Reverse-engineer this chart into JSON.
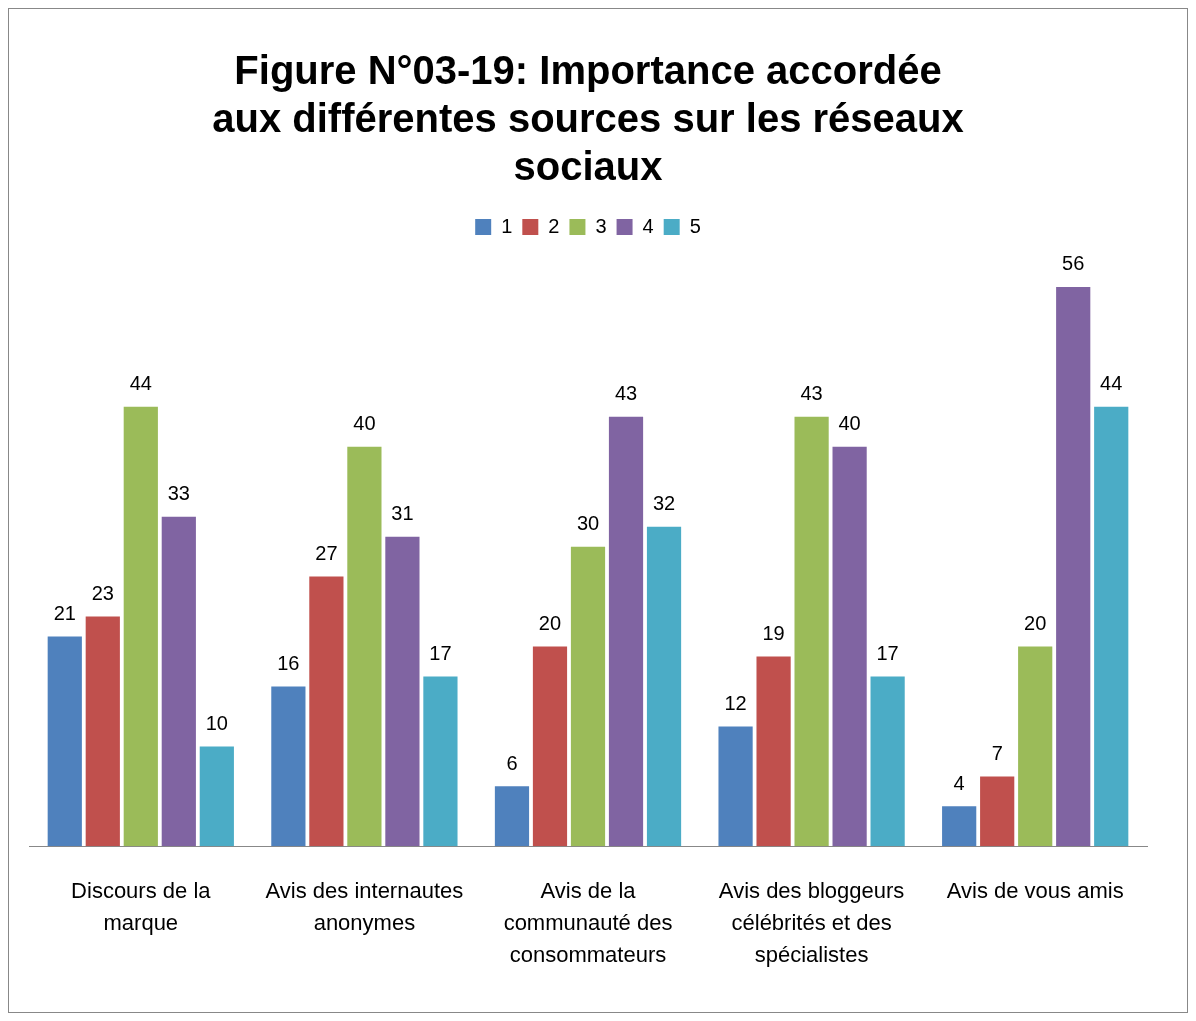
{
  "chart_data": {
    "type": "bar",
    "title": "Figure N°03-19: Importance accordée aux différentes sources sur les réseaux sociaux",
    "categories": [
      "Discours de la marque",
      "Avis des internautes anonymes",
      "Avis de la communauté des consommateurs",
      "Avis des bloggeurs célébrités et des spécialistes",
      "Avis de vous amis"
    ],
    "series": [
      {
        "name": "1",
        "color": "#4f81bd",
        "values": [
          21,
          16,
          6,
          12,
          4
        ]
      },
      {
        "name": "2",
        "color": "#c0504d",
        "values": [
          23,
          27,
          20,
          19,
          7
        ]
      },
      {
        "name": "3",
        "color": "#9bbb59",
        "values": [
          44,
          40,
          30,
          43,
          20
        ]
      },
      {
        "name": "4",
        "color": "#8064a2",
        "values": [
          33,
          31,
          43,
          40,
          56
        ]
      },
      {
        "name": "5",
        "color": "#4bacc6",
        "values": [
          10,
          17,
          32,
          17,
          44
        ]
      }
    ],
    "data_labels": true,
    "legend": "top",
    "grid": false
  }
}
